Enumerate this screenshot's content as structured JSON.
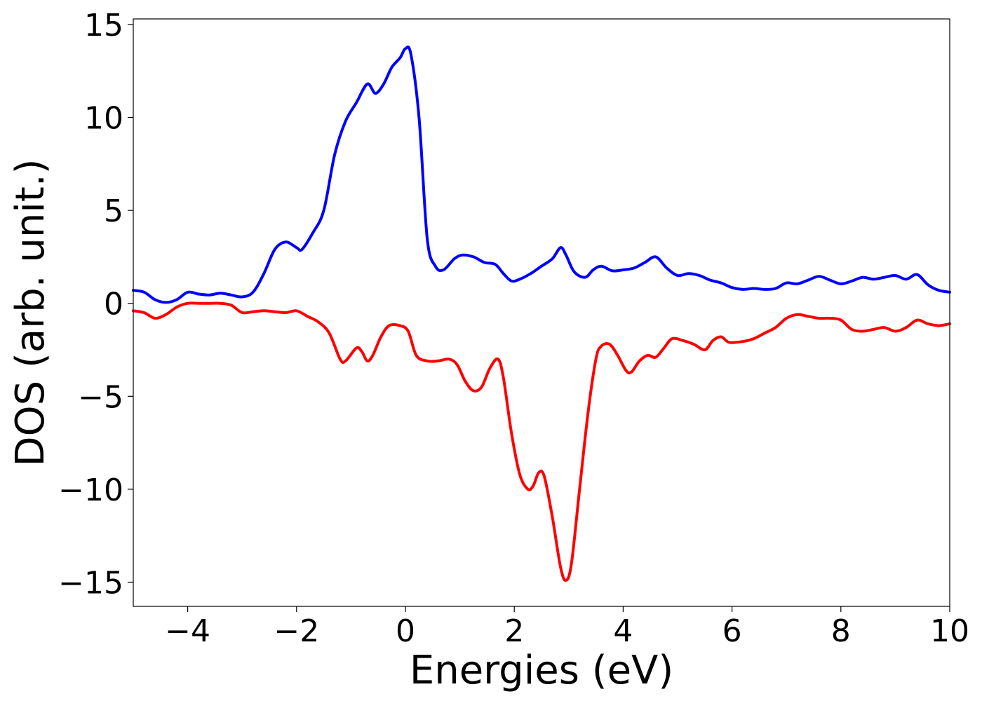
{
  "chart_data": {
    "type": "line",
    "xlabel": "Energies (eV)",
    "ylabel": "DOS (arb. unit.)",
    "xlim": [
      -5,
      10
    ],
    "ylim": [
      -16.3,
      15.3
    ],
    "grid": false,
    "x_ticks": [
      -4,
      -2,
      0,
      2,
      4,
      6,
      8,
      10
    ],
    "x_tick_labels": [
      "−4",
      "−2",
      "0",
      "2",
      "4",
      "6",
      "8",
      "10"
    ],
    "y_ticks": [
      15,
      10,
      5,
      0,
      -5,
      -10,
      -15
    ],
    "y_tick_labels": [
      "15",
      "10",
      "5",
      "0",
      "−5",
      "−10",
      "−15"
    ],
    "series": [
      {
        "color": "#0000ff",
        "points": [
          [
            -5.0,
            0.7
          ],
          [
            -4.8,
            0.6
          ],
          [
            -4.6,
            0.2
          ],
          [
            -4.4,
            0.05
          ],
          [
            -4.2,
            0.2
          ],
          [
            -4.0,
            0.6
          ],
          [
            -3.8,
            0.5
          ],
          [
            -3.6,
            0.45
          ],
          [
            -3.4,
            0.55
          ],
          [
            -3.2,
            0.45
          ],
          [
            -3.0,
            0.35
          ],
          [
            -2.8,
            0.6
          ],
          [
            -2.6,
            1.6
          ],
          [
            -2.4,
            2.9
          ],
          [
            -2.2,
            3.3
          ],
          [
            -2.0,
            3.0
          ],
          [
            -1.9,
            2.9
          ],
          [
            -1.7,
            3.8
          ],
          [
            -1.5,
            5.0
          ],
          [
            -1.3,
            8.0
          ],
          [
            -1.1,
            9.8
          ],
          [
            -0.9,
            10.8
          ],
          [
            -0.7,
            11.8
          ],
          [
            -0.55,
            11.3
          ],
          [
            -0.4,
            11.8
          ],
          [
            -0.25,
            12.7
          ],
          [
            -0.1,
            13.2
          ],
          [
            0.0,
            13.7
          ],
          [
            0.1,
            13.4
          ],
          [
            0.25,
            10.0
          ],
          [
            0.4,
            3.5
          ],
          [
            0.55,
            2.0
          ],
          [
            0.7,
            1.8
          ],
          [
            0.9,
            2.4
          ],
          [
            1.05,
            2.6
          ],
          [
            1.25,
            2.5
          ],
          [
            1.45,
            2.2
          ],
          [
            1.65,
            2.1
          ],
          [
            1.8,
            1.6
          ],
          [
            1.95,
            1.2
          ],
          [
            2.1,
            1.3
          ],
          [
            2.3,
            1.6
          ],
          [
            2.5,
            2.0
          ],
          [
            2.7,
            2.4
          ],
          [
            2.85,
            3.0
          ],
          [
            2.95,
            2.6
          ],
          [
            3.1,
            1.7
          ],
          [
            3.3,
            1.4
          ],
          [
            3.45,
            1.8
          ],
          [
            3.6,
            2.0
          ],
          [
            3.8,
            1.75
          ],
          [
            4.0,
            1.8
          ],
          [
            4.2,
            1.9
          ],
          [
            4.4,
            2.2
          ],
          [
            4.6,
            2.5
          ],
          [
            4.8,
            1.9
          ],
          [
            5.0,
            1.5
          ],
          [
            5.2,
            1.6
          ],
          [
            5.4,
            1.5
          ],
          [
            5.6,
            1.25
          ],
          [
            5.8,
            1.1
          ],
          [
            6.0,
            0.85
          ],
          [
            6.2,
            0.75
          ],
          [
            6.4,
            0.8
          ],
          [
            6.6,
            0.75
          ],
          [
            6.8,
            0.8
          ],
          [
            7.0,
            1.1
          ],
          [
            7.2,
            1.05
          ],
          [
            7.4,
            1.25
          ],
          [
            7.6,
            1.45
          ],
          [
            7.8,
            1.25
          ],
          [
            8.0,
            1.05
          ],
          [
            8.2,
            1.2
          ],
          [
            8.4,
            1.4
          ],
          [
            8.6,
            1.3
          ],
          [
            8.8,
            1.4
          ],
          [
            9.0,
            1.5
          ],
          [
            9.2,
            1.3
          ],
          [
            9.4,
            1.55
          ],
          [
            9.6,
            1.0
          ],
          [
            9.8,
            0.7
          ],
          [
            10.0,
            0.6
          ]
        ]
      },
      {
        "color": "#ff0000",
        "points": [
          [
            -5.0,
            -0.4
          ],
          [
            -4.8,
            -0.5
          ],
          [
            -4.6,
            -0.8
          ],
          [
            -4.4,
            -0.6
          ],
          [
            -4.2,
            -0.2
          ],
          [
            -4.0,
            0.0
          ],
          [
            -3.8,
            0.0
          ],
          [
            -3.6,
            0.0
          ],
          [
            -3.4,
            0.0
          ],
          [
            -3.2,
            -0.1
          ],
          [
            -3.0,
            -0.5
          ],
          [
            -2.8,
            -0.45
          ],
          [
            -2.6,
            -0.4
          ],
          [
            -2.4,
            -0.45
          ],
          [
            -2.2,
            -0.5
          ],
          [
            -2.0,
            -0.4
          ],
          [
            -1.8,
            -0.7
          ],
          [
            -1.6,
            -1.0
          ],
          [
            -1.4,
            -1.6
          ],
          [
            -1.2,
            -3.0
          ],
          [
            -1.1,
            -3.1
          ],
          [
            -0.9,
            -2.4
          ],
          [
            -0.8,
            -2.6
          ],
          [
            -0.7,
            -3.1
          ],
          [
            -0.6,
            -2.8
          ],
          [
            -0.45,
            -1.8
          ],
          [
            -0.3,
            -1.2
          ],
          [
            -0.1,
            -1.2
          ],
          [
            0.05,
            -1.5
          ],
          [
            0.2,
            -2.8
          ],
          [
            0.4,
            -3.1
          ],
          [
            0.6,
            -3.1
          ],
          [
            0.8,
            -3.0
          ],
          [
            0.95,
            -3.3
          ],
          [
            1.1,
            -4.2
          ],
          [
            1.25,
            -4.7
          ],
          [
            1.4,
            -4.5
          ],
          [
            1.55,
            -3.5
          ],
          [
            1.7,
            -3.0
          ],
          [
            1.8,
            -4.0
          ],
          [
            1.95,
            -7.0
          ],
          [
            2.1,
            -9.2
          ],
          [
            2.25,
            -10.0
          ],
          [
            2.35,
            -9.8
          ],
          [
            2.45,
            -9.1
          ],
          [
            2.55,
            -9.3
          ],
          [
            2.7,
            -11.5
          ],
          [
            2.85,
            -14.2
          ],
          [
            2.95,
            -14.9
          ],
          [
            3.05,
            -14.0
          ],
          [
            3.2,
            -10.0
          ],
          [
            3.35,
            -6.0
          ],
          [
            3.5,
            -3.0
          ],
          [
            3.6,
            -2.3
          ],
          [
            3.75,
            -2.2
          ],
          [
            3.9,
            -2.8
          ],
          [
            4.05,
            -3.6
          ],
          [
            4.15,
            -3.7
          ],
          [
            4.3,
            -3.1
          ],
          [
            4.45,
            -2.8
          ],
          [
            4.6,
            -2.9
          ],
          [
            4.75,
            -2.4
          ],
          [
            4.9,
            -1.9
          ],
          [
            5.1,
            -2.0
          ],
          [
            5.3,
            -2.2
          ],
          [
            5.5,
            -2.5
          ],
          [
            5.65,
            -2.0
          ],
          [
            5.8,
            -1.8
          ],
          [
            5.95,
            -2.1
          ],
          [
            6.2,
            -2.05
          ],
          [
            6.4,
            -1.9
          ],
          [
            6.6,
            -1.6
          ],
          [
            6.8,
            -1.3
          ],
          [
            7.0,
            -0.8
          ],
          [
            7.2,
            -0.6
          ],
          [
            7.4,
            -0.7
          ],
          [
            7.6,
            -0.8
          ],
          [
            7.8,
            -0.8
          ],
          [
            8.0,
            -0.9
          ],
          [
            8.2,
            -1.4
          ],
          [
            8.4,
            -1.5
          ],
          [
            8.6,
            -1.4
          ],
          [
            8.8,
            -1.3
          ],
          [
            9.0,
            -1.5
          ],
          [
            9.2,
            -1.3
          ],
          [
            9.4,
            -0.9
          ],
          [
            9.6,
            -1.1
          ],
          [
            9.8,
            -1.2
          ],
          [
            10.0,
            -1.1
          ]
        ]
      }
    ]
  }
}
